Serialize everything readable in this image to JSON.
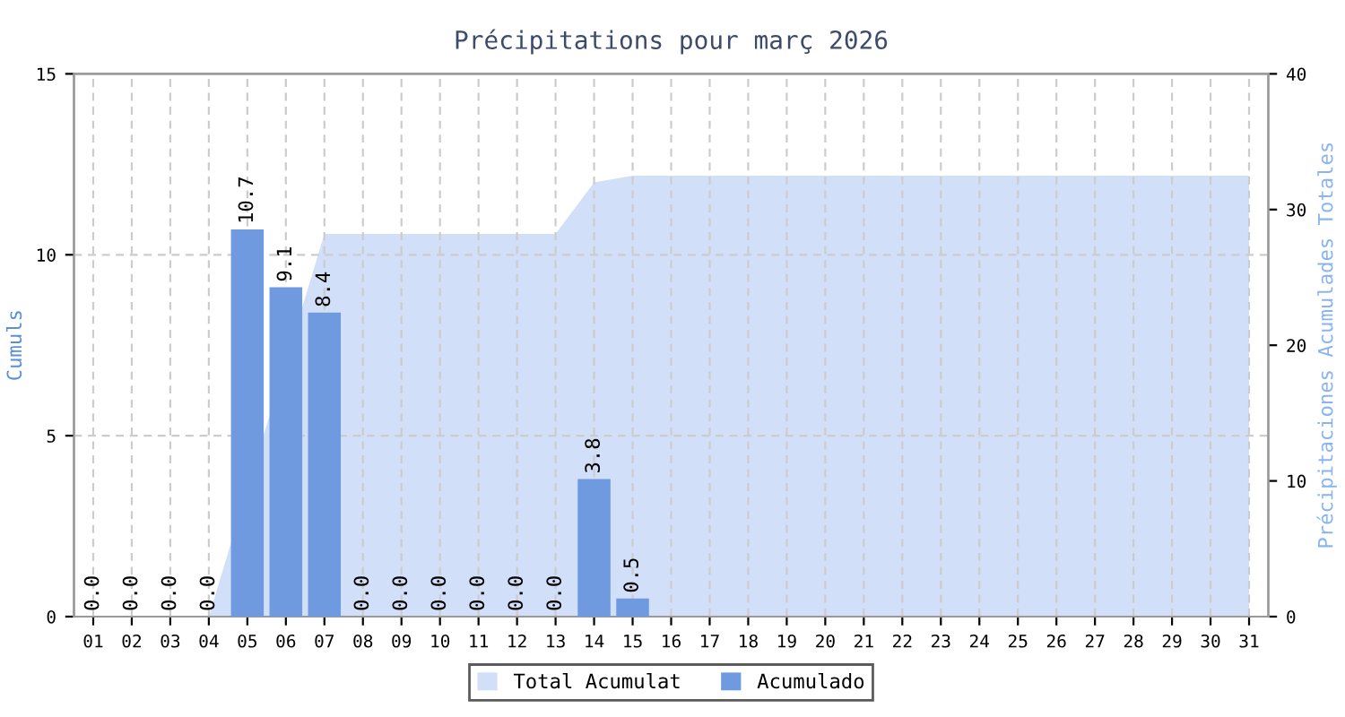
{
  "chart_data": {
    "type": "bar",
    "title": "Précipitations pour març 2026",
    "ylabel": "Cumuls",
    "y2label": "Précipitaciones Acumulades Totales",
    "categories": [
      "01",
      "02",
      "03",
      "04",
      "05",
      "06",
      "07",
      "08",
      "09",
      "10",
      "11",
      "12",
      "13",
      "14",
      "15",
      "16",
      "17",
      "18",
      "19",
      "20",
      "21",
      "22",
      "23",
      "24",
      "25",
      "26",
      "27",
      "28",
      "29",
      "30",
      "31"
    ],
    "series": [
      {
        "name": "Total Acumulat",
        "type": "area",
        "axis": "y2",
        "color": "#d2dff8",
        "values": [
          0,
          0,
          0,
          0,
          null,
          null,
          28.2,
          28.2,
          28.2,
          28.2,
          28.2,
          28.2,
          28.2,
          32.0,
          32.5,
          32.5,
          32.5,
          32.5,
          32.5,
          32.5,
          32.5,
          32.5,
          32.5,
          32.5,
          32.5,
          32.5,
          32.5,
          32.5,
          32.5,
          32.5,
          32.5
        ]
      },
      {
        "name": "Acumulado",
        "color": "#6f9ae0",
        "values": [
          0.0,
          0.0,
          0.0,
          0.0,
          10.7,
          9.1,
          8.4,
          0.0,
          0.0,
          0.0,
          0.0,
          0.0,
          0.0,
          3.8,
          0.5,
          null,
          null,
          null,
          null,
          null,
          null,
          null,
          null,
          null,
          null,
          null,
          null,
          null,
          null,
          null,
          null
        ],
        "value_labels": [
          "0.0",
          "0.0",
          "0.0",
          "0.0",
          "10.7",
          "9.1",
          "8.4",
          "0.0",
          "0.0",
          "0.0",
          "0.0",
          "0.0",
          "0.0",
          "3.8",
          "0.5",
          null,
          null,
          null,
          null,
          null,
          null,
          null,
          null,
          null,
          null,
          null,
          null,
          null,
          null,
          null,
          null
        ]
      }
    ],
    "ylim": [
      0,
      15
    ],
    "yticks": [
      0,
      5,
      10,
      15
    ],
    "y2lim": [
      0,
      40
    ],
    "y2ticks": [
      0,
      10,
      20,
      30,
      40
    ],
    "grid": true,
    "legend": "bottom"
  }
}
